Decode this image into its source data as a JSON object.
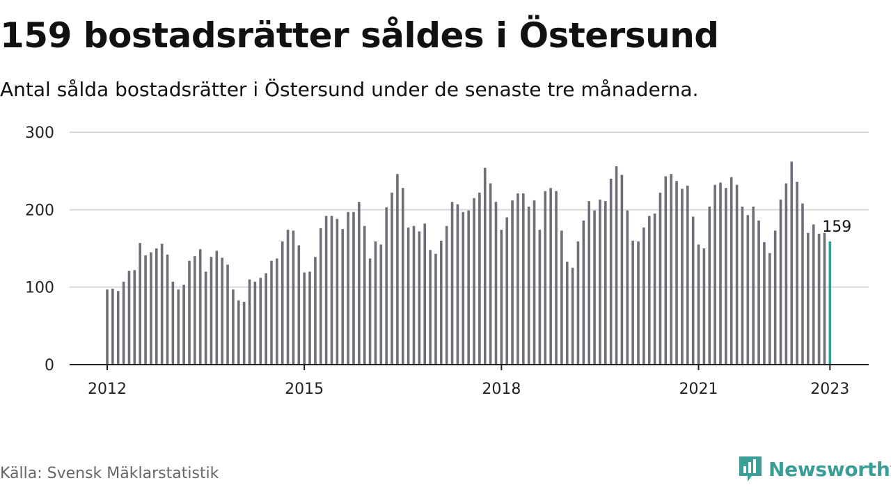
{
  "title": "159 bostadsrätter såldes i Östersund",
  "subtitle": "Antal sålda bostadsrätter i Östersund under de senaste tre månaderna.",
  "source": "Källa: Svensk Mäklarstatistik",
  "logo_text": "Newsworthy",
  "colors": {
    "bar": "#6e6e78",
    "highlight": "#1aa7a0",
    "grid": "#d9d9d9",
    "logo": "#3a9e97"
  },
  "chart_data": {
    "type": "bar",
    "x_ticks": [
      "2012",
      "2015",
      "2018",
      "2021",
      "2023"
    ],
    "y_ticks": [
      0,
      100,
      200,
      300
    ],
    "ylim": [
      0,
      300
    ],
    "start_year": 2012,
    "callout": "159",
    "values": [
      97,
      98,
      95,
      107,
      121,
      122,
      157,
      141,
      145,
      150,
      156,
      142,
      107,
      97,
      103,
      134,
      140,
      149,
      120,
      139,
      147,
      138,
      129,
      97,
      83,
      81,
      110,
      107,
      112,
      118,
      134,
      137,
      159,
      174,
      173,
      154,
      119,
      120,
      139,
      176,
      192,
      192,
      188,
      175,
      197,
      197,
      210,
      179,
      137,
      159,
      155,
      203,
      222,
      246,
      228,
      177,
      179,
      172,
      182,
      148,
      143,
      160,
      179,
      210,
      207,
      197,
      199,
      215,
      222,
      254,
      234,
      210,
      174,
      190,
      212,
      221,
      221,
      204,
      212,
      174,
      224,
      228,
      224,
      173,
      133,
      125,
      159,
      186,
      211,
      199,
      213,
      211,
      240,
      256,
      245,
      199,
      160,
      159,
      177,
      192,
      195,
      222,
      243,
      246,
      237,
      227,
      231,
      191,
      155,
      150,
      204,
      232,
      235,
      228,
      242,
      232,
      204,
      193,
      204,
      186,
      158,
      144,
      173,
      213,
      234,
      262,
      236,
      208,
      170,
      181,
      169,
      170,
      159
    ]
  }
}
